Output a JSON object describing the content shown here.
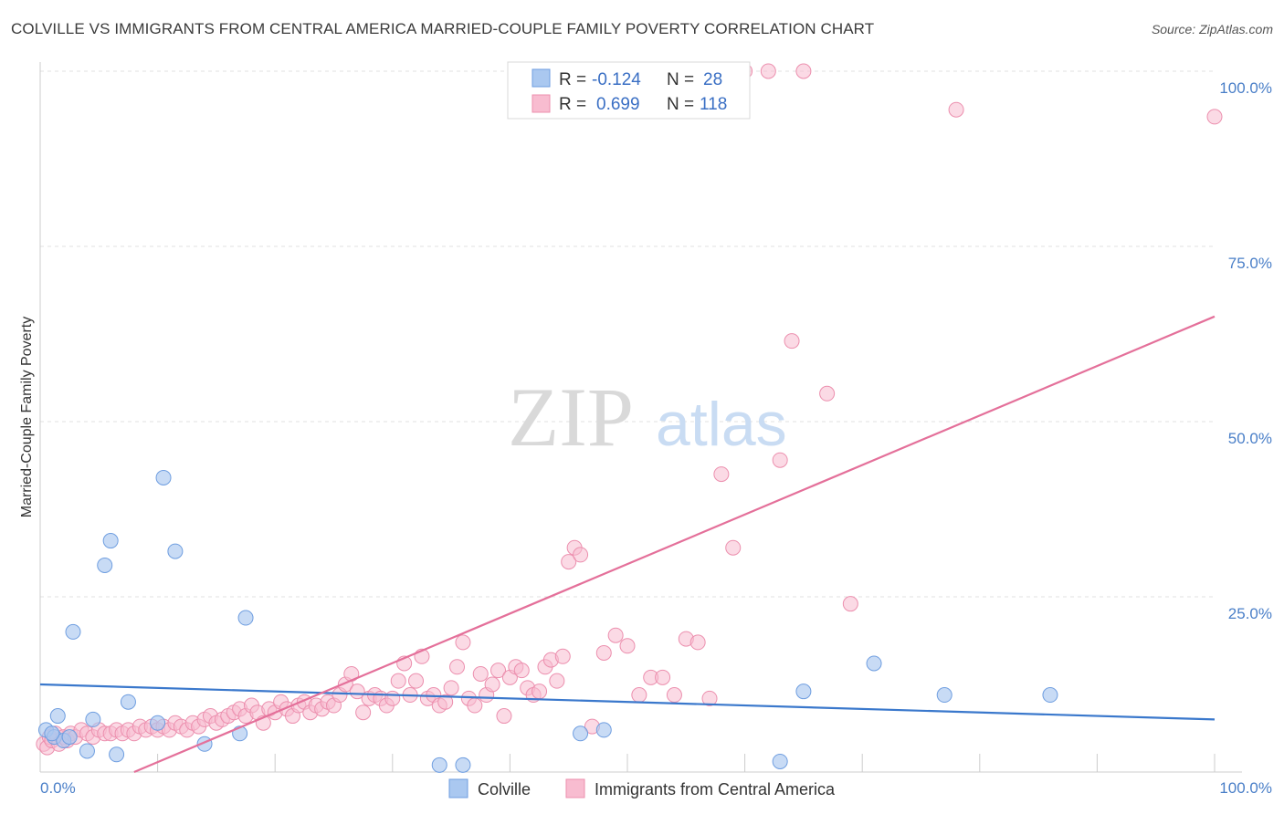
{
  "title": "COLVILLE VS IMMIGRANTS FROM CENTRAL AMERICA MARRIED-COUPLE FAMILY POVERTY CORRELATION CHART",
  "source": "Source: ZipAtlas.com",
  "watermark": {
    "zip": "ZIP",
    "atlas": "atlas"
  },
  "legend": {
    "r_label": "R =",
    "n_label": "N =",
    "series1": {
      "r": "-0.124",
      "n": "28"
    },
    "series2": {
      "r": "0.699",
      "n": "118"
    }
  },
  "chart_data": {
    "type": "scatter",
    "title": "COLVILLE VS IMMIGRANTS FROM CENTRAL AMERICA MARRIED-COUPLE FAMILY POVERTY CORRELATION CHART",
    "xlabel": "",
    "ylabel": "Married-Couple Family Poverty",
    "xlim": [
      0,
      100
    ],
    "ylim": [
      0,
      100
    ],
    "x_tick_labels": [
      "0.0%",
      "100.0%"
    ],
    "y_ticks": [
      25,
      50,
      75,
      100
    ],
    "y_tick_labels": [
      "25.0%",
      "50.0%",
      "75.0%",
      "100.0%"
    ],
    "grid": true,
    "legend_position": "top-center",
    "colors": {
      "colville_fill": "#aac8f0",
      "colville_stroke": "#6f9ee0",
      "colville_line": "#3a78cc",
      "immigrants_fill": "#f8bcd0",
      "immigrants_stroke": "#ec8fae",
      "immigrants_line": "#e4709a"
    },
    "series": [
      {
        "name": "Colville",
        "trend": {
          "x": [
            0,
            100
          ],
          "y": [
            12.5,
            7.5
          ]
        },
        "points": [
          [
            0.5,
            6.0
          ],
          [
            1.2,
            5.0
          ],
          [
            1.5,
            8.0
          ],
          [
            2.0,
            4.5
          ],
          [
            2.5,
            5.0
          ],
          [
            2.8,
            20.0
          ],
          [
            4.0,
            3.0
          ],
          [
            4.5,
            7.5
          ],
          [
            5.5,
            29.5
          ],
          [
            6.0,
            33.0
          ],
          [
            6.5,
            2.5
          ],
          [
            7.5,
            10.0
          ],
          [
            10.0,
            7.0
          ],
          [
            10.5,
            42.0
          ],
          [
            11.5,
            31.5
          ],
          [
            14.0,
            4.0
          ],
          [
            17.0,
            5.5
          ],
          [
            17.5,
            22.0
          ],
          [
            34.0,
            1.0
          ],
          [
            36.0,
            1.0
          ],
          [
            46.0,
            5.5
          ],
          [
            48.0,
            6.0
          ],
          [
            63.0,
            1.5
          ],
          [
            65.0,
            11.5
          ],
          [
            71.0,
            15.5
          ],
          [
            77.0,
            11.0
          ],
          [
            86.0,
            11.0
          ],
          [
            1.0,
            5.5
          ]
        ]
      },
      {
        "name": "Immigrants from Central America",
        "trend": {
          "x": [
            8,
            100
          ],
          "y": [
            0,
            65
          ]
        },
        "points": [
          [
            0.3,
            4.0
          ],
          [
            0.6,
            3.5
          ],
          [
            0.8,
            5.0
          ],
          [
            1.0,
            4.5
          ],
          [
            1.3,
            5.5
          ],
          [
            1.6,
            4.0
          ],
          [
            2.0,
            5.0
          ],
          [
            2.3,
            4.5
          ],
          [
            2.6,
            5.5
          ],
          [
            3.0,
            5.0
          ],
          [
            3.5,
            6.0
          ],
          [
            4.0,
            5.5
          ],
          [
            4.5,
            5.0
          ],
          [
            5.0,
            6.0
          ],
          [
            5.5,
            5.5
          ],
          [
            6.0,
            5.5
          ],
          [
            6.5,
            6.0
          ],
          [
            7.0,
            5.5
          ],
          [
            7.5,
            6.0
          ],
          [
            8.0,
            5.5
          ],
          [
            8.5,
            6.5
          ],
          [
            9.0,
            6.0
          ],
          [
            9.5,
            6.5
          ],
          [
            10.0,
            6.0
          ],
          [
            10.5,
            6.5
          ],
          [
            11.0,
            6.0
          ],
          [
            11.5,
            7.0
          ],
          [
            12.0,
            6.5
          ],
          [
            12.5,
            6.0
          ],
          [
            13.0,
            7.0
          ],
          [
            13.5,
            6.5
          ],
          [
            14.0,
            7.5
          ],
          [
            14.5,
            8.0
          ],
          [
            15.0,
            7.0
          ],
          [
            15.5,
            7.5
          ],
          [
            16.0,
            8.0
          ],
          [
            16.5,
            8.5
          ],
          [
            17.0,
            9.0
          ],
          [
            17.5,
            8.0
          ],
          [
            18.0,
            9.5
          ],
          [
            18.5,
            8.5
          ],
          [
            19.0,
            7.0
          ],
          [
            19.5,
            9.0
          ],
          [
            20.0,
            8.5
          ],
          [
            20.5,
            10.0
          ],
          [
            21.0,
            9.0
          ],
          [
            21.5,
            8.0
          ],
          [
            22.0,
            9.5
          ],
          [
            22.5,
            10.0
          ],
          [
            23.0,
            8.5
          ],
          [
            23.5,
            9.5
          ],
          [
            24.0,
            9.0
          ],
          [
            24.5,
            10.0
          ],
          [
            25.0,
            9.5
          ],
          [
            25.5,
            11.0
          ],
          [
            26.0,
            12.5
          ],
          [
            26.5,
            14.0
          ],
          [
            27.0,
            11.5
          ],
          [
            27.5,
            8.5
          ],
          [
            28.0,
            10.5
          ],
          [
            28.5,
            11.0
          ],
          [
            29.0,
            10.5
          ],
          [
            29.5,
            9.5
          ],
          [
            30.0,
            10.5
          ],
          [
            30.5,
            13.0
          ],
          [
            31.0,
            15.5
          ],
          [
            31.5,
            11.0
          ],
          [
            32.0,
            13.0
          ],
          [
            32.5,
            16.5
          ],
          [
            33.0,
            10.5
          ],
          [
            33.5,
            11.0
          ],
          [
            34.0,
            9.5
          ],
          [
            34.5,
            10.0
          ],
          [
            35.0,
            12.0
          ],
          [
            35.5,
            15.0
          ],
          [
            36.0,
            18.5
          ],
          [
            36.5,
            10.5
          ],
          [
            37.0,
            9.5
          ],
          [
            37.5,
            14.0
          ],
          [
            38.0,
            11.0
          ],
          [
            38.5,
            12.5
          ],
          [
            39.0,
            14.5
          ],
          [
            39.5,
            8.0
          ],
          [
            40.0,
            13.5
          ],
          [
            40.5,
            15.0
          ],
          [
            41.0,
            14.5
          ],
          [
            41.5,
            12.0
          ],
          [
            42.0,
            11.0
          ],
          [
            42.5,
            11.5
          ],
          [
            43.0,
            15.0
          ],
          [
            43.5,
            16.0
          ],
          [
            44.0,
            13.0
          ],
          [
            44.5,
            16.5
          ],
          [
            45.0,
            30.0
          ],
          [
            45.5,
            32.0
          ],
          [
            46.0,
            31.0
          ],
          [
            47.0,
            6.5
          ],
          [
            48.0,
            17.0
          ],
          [
            49.0,
            19.5
          ],
          [
            50.0,
            18.0
          ],
          [
            51.0,
            11.0
          ],
          [
            52.0,
            13.5
          ],
          [
            53.0,
            13.5
          ],
          [
            54.0,
            11.0
          ],
          [
            55.0,
            19.0
          ],
          [
            56.0,
            18.5
          ],
          [
            57.0,
            10.5
          ],
          [
            58.0,
            42.5
          ],
          [
            59.0,
            32.0
          ],
          [
            60.0,
            100.0
          ],
          [
            62.0,
            100.0
          ],
          [
            63.0,
            44.5
          ],
          [
            64.0,
            61.5
          ],
          [
            65.0,
            100.0
          ],
          [
            67.0,
            54.0
          ],
          [
            69.0,
            24.0
          ],
          [
            78.0,
            94.5
          ],
          [
            100.0,
            93.5
          ]
        ]
      }
    ]
  },
  "bottom_legend": {
    "item1": "Colville",
    "item2": "Immigrants from Central America"
  }
}
